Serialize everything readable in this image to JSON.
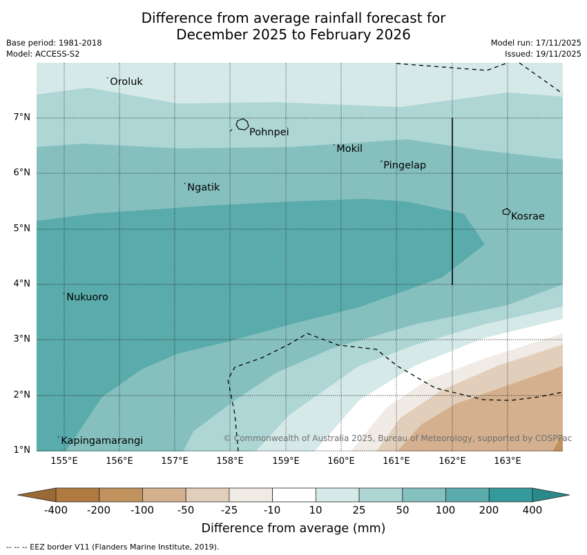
{
  "title": {
    "line1": "Difference from average rainfall forecast for",
    "line2": "December 2025 to February 2026"
  },
  "meta": {
    "base_period": "Base period: 1981-2018",
    "model": "Model: ACCESS-S2",
    "model_run": "Model run: 17/11/2025",
    "issued": "Issued: 19/11/2025"
  },
  "map": {
    "lon_ticks": [
      "155°E",
      "156°E",
      "157°E",
      "158°E",
      "159°E",
      "160°E",
      "161°E",
      "162°E",
      "163°E"
    ],
    "lat_ticks": [
      "7°N",
      "6°N",
      "5°N",
      "4°N",
      "3°N",
      "2°N",
      "1°N"
    ],
    "lon_range": [
      154.5,
      164.0
    ],
    "lat_range": [
      1.0,
      8.0
    ],
    "places": [
      {
        "name": "Oroluk",
        "lon": 155.75,
        "lat": 7.58
      },
      {
        "name": "Pohnpei",
        "lon": 158.3,
        "lat": 6.73
      },
      {
        "name": "Mokil",
        "lon": 159.8,
        "lat": 6.38
      },
      {
        "name": "Pingelap",
        "lon": 160.75,
        "lat": 6.09
      },
      {
        "name": "Ngatik",
        "lon": 157.15,
        "lat": 5.7
      },
      {
        "name": "Kosrae",
        "lon": 163.05,
        "lat": 5.18
      },
      {
        "name": "Nukuoro",
        "lon": 154.98,
        "lat": 3.7
      },
      {
        "name": "Kapingamarangi",
        "lon": 154.9,
        "lat": 1.08
      }
    ],
    "copyright": "© Commonwealth of Australia 2025, Bureau of Meteorology, supported by COSPPac"
  },
  "colorbar": {
    "title": "Difference from average (mm)",
    "labels": [
      "-400",
      "-200",
      "-100",
      "-50",
      "-25",
      "-10",
      "10",
      "25",
      "50",
      "100",
      "200",
      "400"
    ],
    "colors": [
      "#b07a40",
      "#c0925e",
      "#d4b08e",
      "#e2cfbb",
      "#f1ebe6",
      "#ffffff",
      "#d5e9e8",
      "#aed6d5",
      "#85c0bf",
      "#5aabab",
      "#34999a"
    ],
    "low_color": "#9a6a34",
    "high_color": "#2a8a8a"
  },
  "footer": "--  --  -- EEZ border V11 (Flanders Marine Institute, 2019)."
}
